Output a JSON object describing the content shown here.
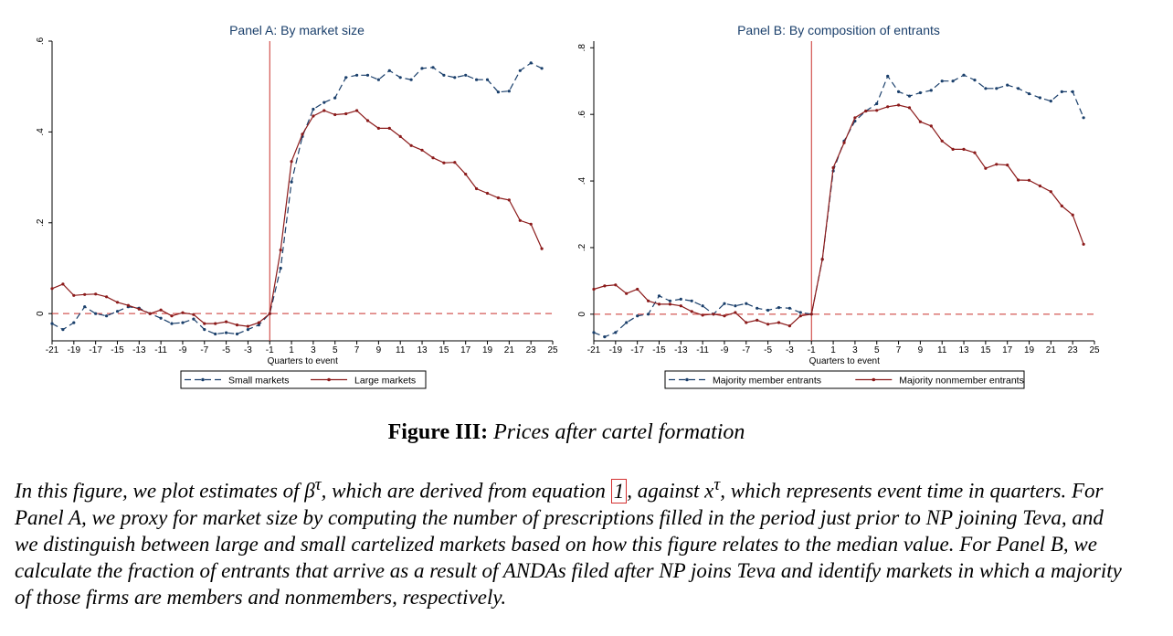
{
  "figure": {
    "label": "Figure III:",
    "title": "Prices after cartel formation"
  },
  "caption": {
    "p1": "In this figure, we plot estimates of ",
    "beta": "β",
    "tau": "τ",
    "p2": ", which are derived from equation ",
    "ref": "1",
    "p3": ", against ",
    "x": "x",
    "p4": ", which represents event time in quarters. For Panel A, we proxy for market size by computing the number of prescriptions filled in the period just prior to NP joining Teva, and we distinguish between large and small cartelized markets based on how this figure relates to the median value. For Panel B, we calculate the fraction of entrants that arrive as a result of ANDAs filed after NP joins Teva and identify markets in which a majority of those firms are members and nonmembers, respectively."
  },
  "colors": {
    "series_small": "#1a3f6b",
    "series_large": "#8b1a1a",
    "event_line": "#c9302c",
    "zero_line": "#c9302c",
    "title": "#1a3f6b",
    "axis": "#000000"
  },
  "chart_data": [
    {
      "type": "line",
      "title": "Panel A: By market size",
      "xlabel": "Quarters to event",
      "ylabel": "",
      "xlim": [
        -21,
        25
      ],
      "ylim": [
        -0.06,
        0.6
      ],
      "x_ticks": [
        -21,
        -19,
        -17,
        -15,
        -13,
        -11,
        -9,
        -7,
        -5,
        -3,
        -1,
        1,
        3,
        5,
        7,
        9,
        11,
        13,
        15,
        17,
        19,
        21,
        23,
        25
      ],
      "y_ticks": [
        0,
        0.2,
        0.4,
        0.6
      ],
      "y_tick_labels": [
        "0",
        ".2",
        ".4",
        ".6"
      ],
      "event_line_x": -1,
      "reference_line_y": 0,
      "legend_position": "bottom",
      "grid": false,
      "x": [
        -21,
        -20,
        -19,
        -18,
        -17,
        -16,
        -15,
        -14,
        -13,
        -12,
        -11,
        -10,
        -9,
        -8,
        -7,
        -6,
        -5,
        -4,
        -3,
        -2,
        -1,
        0,
        1,
        2,
        3,
        4,
        5,
        6,
        7,
        8,
        9,
        10,
        11,
        12,
        13,
        14,
        15,
        16,
        17,
        18,
        19,
        20,
        21,
        22,
        23,
        24
      ],
      "series": [
        {
          "name": "Small markets",
          "style": "dashed",
          "values": [
            -0.022,
            -0.035,
            -0.02,
            0.015,
            0.0,
            -0.005,
            0.005,
            0.015,
            0.012,
            0.0,
            -0.01,
            -0.022,
            -0.02,
            -0.012,
            -0.035,
            -0.045,
            -0.042,
            -0.045,
            -0.035,
            -0.025,
            0.0,
            0.1,
            0.29,
            0.39,
            0.45,
            0.465,
            0.475,
            0.52,
            0.525,
            0.525,
            0.515,
            0.535,
            0.52,
            0.515,
            0.54,
            0.542,
            0.525,
            0.52,
            0.525,
            0.515,
            0.515,
            0.488,
            0.49,
            0.535,
            0.552,
            0.54
          ]
        },
        {
          "name": "Large markets",
          "style": "solid",
          "values": [
            0.055,
            0.065,
            0.04,
            0.042,
            0.043,
            0.037,
            0.025,
            0.018,
            0.01,
            0.0,
            0.008,
            -0.005,
            0.002,
            -0.002,
            -0.022,
            -0.022,
            -0.018,
            -0.025,
            -0.028,
            -0.02,
            0.0,
            0.14,
            0.335,
            0.395,
            0.435,
            0.447,
            0.438,
            0.44,
            0.447,
            0.425,
            0.408,
            0.408,
            0.39,
            0.37,
            0.36,
            0.343,
            0.332,
            0.333,
            0.307,
            0.275,
            0.265,
            0.255,
            0.25,
            0.205,
            0.197,
            0.143
          ]
        }
      ]
    },
    {
      "type": "line",
      "title": "Panel B: By composition of entrants",
      "xlabel": "Quarters to event",
      "ylabel": "",
      "xlim": [
        -21,
        25
      ],
      "ylim": [
        -0.08,
        0.82
      ],
      "x_ticks": [
        -21,
        -19,
        -17,
        -15,
        -13,
        -11,
        -9,
        -7,
        -5,
        -3,
        -1,
        1,
        3,
        5,
        7,
        9,
        11,
        13,
        15,
        17,
        19,
        21,
        23,
        25
      ],
      "y_ticks": [
        0,
        0.2,
        0.4,
        0.6,
        0.8
      ],
      "y_tick_labels": [
        "0",
        ".2",
        ".4",
        ".6",
        ".8"
      ],
      "event_line_x": -1,
      "reference_line_y": 0,
      "legend_position": "bottom",
      "grid": false,
      "x": [
        -21,
        -20,
        -19,
        -18,
        -17,
        -16,
        -15,
        -14,
        -13,
        -12,
        -11,
        -10,
        -9,
        -8,
        -7,
        -6,
        -5,
        -4,
        -3,
        -2,
        -1,
        0,
        1,
        2,
        3,
        4,
        5,
        6,
        7,
        8,
        9,
        10,
        11,
        12,
        13,
        14,
        15,
        16,
        17,
        18,
        19,
        20,
        21,
        22,
        23,
        24
      ],
      "series": [
        {
          "name": "Majority member entrants",
          "style": "dashed",
          "values": [
            -0.055,
            -0.068,
            -0.055,
            -0.025,
            -0.005,
            0.0,
            0.055,
            0.04,
            0.045,
            0.04,
            0.025,
            0.0,
            0.032,
            0.025,
            0.032,
            0.018,
            0.012,
            0.02,
            0.018,
            0.005,
            0.0,
            0.165,
            0.43,
            0.52,
            0.58,
            0.61,
            0.632,
            0.715,
            0.668,
            0.655,
            0.665,
            0.672,
            0.7,
            0.7,
            0.718,
            0.703,
            0.678,
            0.678,
            0.688,
            0.678,
            0.662,
            0.65,
            0.64,
            0.668,
            0.668,
            0.59
          ]
        },
        {
          "name": "Majority nonmember entrants",
          "style": "solid",
          "values": [
            0.075,
            0.085,
            0.088,
            0.062,
            0.075,
            0.04,
            0.03,
            0.03,
            0.025,
            0.008,
            -0.003,
            0.0,
            -0.005,
            0.005,
            -0.025,
            -0.018,
            -0.03,
            -0.025,
            -0.035,
            -0.005,
            0.0,
            0.165,
            0.44,
            0.515,
            0.59,
            0.61,
            0.612,
            0.623,
            0.628,
            0.62,
            0.578,
            0.565,
            0.52,
            0.495,
            0.495,
            0.485,
            0.438,
            0.45,
            0.448,
            0.403,
            0.402,
            0.385,
            0.368,
            0.325,
            0.298,
            0.21
          ]
        }
      ]
    }
  ]
}
